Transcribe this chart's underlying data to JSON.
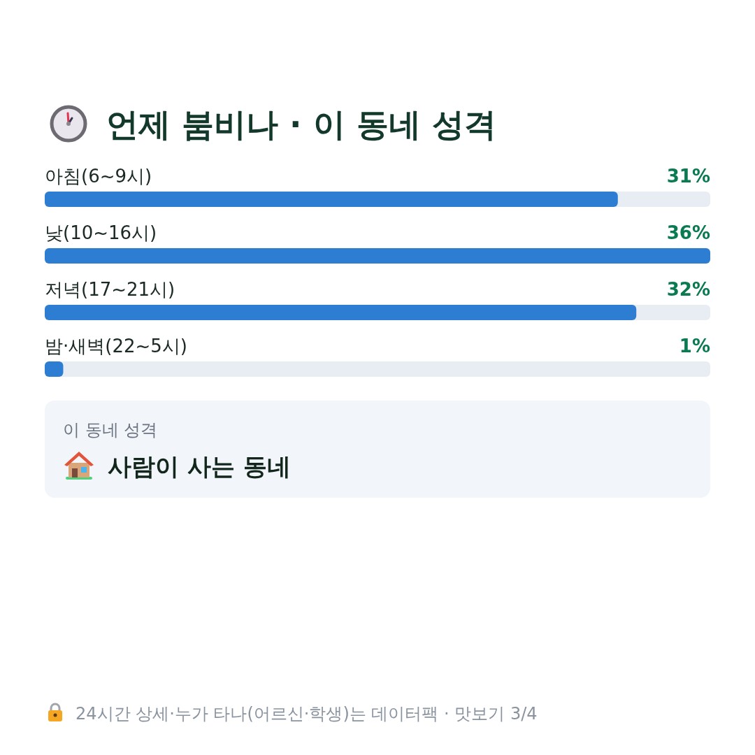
{
  "chart_data": {
    "type": "bar",
    "orientation": "horizontal",
    "title": "언제 붐비나 · 이 동네 성격",
    "categories": [
      "아침(6~9시)",
      "낮(10~16시)",
      "저녁(17~21시)",
      "밤·새벽(22~5시)"
    ],
    "values": [
      31,
      36,
      32,
      1
    ],
    "color": "#2d7dd2",
    "value_labels": [
      "31%",
      "36%",
      "32%",
      "1%"
    ],
    "annotations": [
      "이 동네 성격",
      "사람이 사는 동네",
      "24시간 상세·누가 타나(어르신·학생)는 데이터팩 · 맛보기 3/4"
    ]
  }
}
